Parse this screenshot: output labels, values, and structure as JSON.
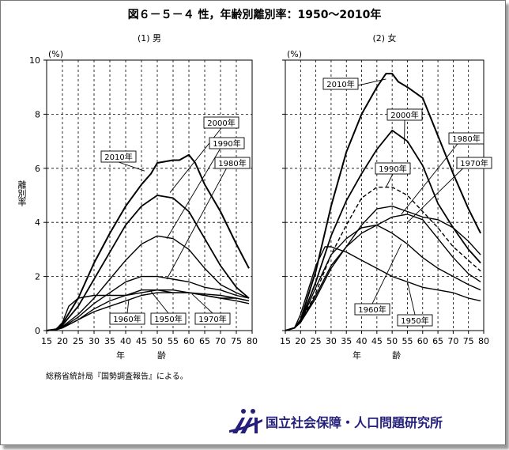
{
  "title": "図６－５－４ 性，年齢別離別率：1950～2010年",
  "ylabel": "離別率",
  "y_unit": "(%)",
  "source": "総務省統計局『国勢調査報告』による。",
  "organization": "国立社会保障・人口問題研究所",
  "colors": {
    "line": "#000000",
    "grid": "#000000",
    "logo": "#241f7a"
  },
  "chart_data": [
    {
      "type": "line",
      "panel_label": "(1) 男",
      "x_label_parts": [
        "年",
        "齢"
      ],
      "xlim": [
        15,
        80
      ],
      "ylim": [
        0,
        10
      ],
      "x_ticks": [
        15,
        20,
        25,
        30,
        35,
        40,
        45,
        50,
        55,
        60,
        65,
        70,
        75,
        80
      ],
      "y_ticks": [
        0,
        2,
        4,
        6,
        8,
        10
      ],
      "grid": true,
      "series": [
        {
          "name": "2010年",
          "x": [
            15,
            18,
            20,
            25,
            30,
            35,
            40,
            45,
            48,
            50,
            55,
            57,
            60,
            62,
            65,
            70,
            75,
            79
          ],
          "y": [
            0,
            0.05,
            0.25,
            1.2,
            2.5,
            3.6,
            4.6,
            5.4,
            5.8,
            6.2,
            6.3,
            6.3,
            6.5,
            6.2,
            5.4,
            4.4,
            3.2,
            2.3
          ]
        },
        {
          "name": "2000年",
          "x": [
            15,
            18,
            20,
            25,
            30,
            35,
            40,
            45,
            50,
            55,
            60,
            65,
            70,
            75,
            79
          ],
          "y": [
            0,
            0.04,
            0.2,
            0.9,
            1.9,
            2.9,
            3.9,
            4.6,
            5.0,
            4.9,
            4.4,
            3.4,
            2.4,
            1.6,
            1.2
          ]
        },
        {
          "name": "1990年",
          "x": [
            15,
            18,
            20,
            25,
            30,
            35,
            40,
            45,
            50,
            55,
            60,
            65,
            70,
            75,
            79
          ],
          "y": [
            0,
            0.04,
            0.15,
            0.6,
            1.2,
            1.9,
            2.6,
            3.2,
            3.5,
            3.4,
            3.0,
            2.3,
            1.7,
            1.4,
            1.2
          ]
        },
        {
          "name": "1980年",
          "x": [
            15,
            18,
            20,
            25,
            30,
            35,
            40,
            45,
            50,
            55,
            60,
            65,
            70,
            75,
            79
          ],
          "y": [
            0,
            0.03,
            0.12,
            0.5,
            1.0,
            1.4,
            1.8,
            2.0,
            2.0,
            1.9,
            1.8,
            1.6,
            1.5,
            1.3,
            1.2
          ]
        },
        {
          "name": "1970年",
          "x": [
            15,
            18,
            20,
            25,
            30,
            35,
            40,
            45,
            50,
            55,
            60,
            65,
            70,
            75,
            79
          ],
          "y": [
            0,
            0.03,
            0.1,
            0.4,
            0.8,
            1.1,
            1.3,
            1.4,
            1.5,
            1.5,
            1.4,
            1.3,
            1.2,
            1.2,
            1.1
          ]
        },
        {
          "name": "1960年",
          "x": [
            15,
            18,
            20,
            25,
            30,
            35,
            40,
            45,
            50,
            55,
            60,
            65,
            70,
            75,
            79
          ],
          "y": [
            0,
            0.03,
            0.1,
            0.4,
            0.7,
            0.9,
            1.1,
            1.3,
            1.4,
            1.4,
            1.4,
            1.35,
            1.3,
            1.2,
            1.1
          ]
        },
        {
          "name": "1950年",
          "x": [
            15,
            18,
            20,
            22,
            25,
            30,
            35,
            40,
            45,
            50,
            55,
            60,
            65,
            70,
            75,
            79
          ],
          "y": [
            0,
            0.05,
            0.3,
            0.9,
            1.2,
            1.3,
            1.3,
            1.3,
            1.5,
            1.5,
            1.4,
            1.4,
            1.3,
            1.2,
            1.1,
            1.0
          ]
        }
      ]
    },
    {
      "type": "line",
      "panel_label": "(2) 女",
      "x_label_parts": [
        "年",
        "齢"
      ],
      "xlim": [
        15,
        80
      ],
      "ylim": [
        0,
        10
      ],
      "x_ticks": [
        15,
        20,
        25,
        30,
        35,
        40,
        45,
        50,
        55,
        60,
        65,
        70,
        75,
        80
      ],
      "y_ticks": [
        0,
        2,
        4,
        6,
        8,
        10
      ],
      "grid": true,
      "series": [
        {
          "name": "2010年",
          "x": [
            15,
            18,
            20,
            25,
            30,
            35,
            40,
            45,
            48,
            50,
            52,
            55,
            60,
            65,
            70,
            75,
            79
          ],
          "y": [
            0,
            0.1,
            0.4,
            2.2,
            4.6,
            6.6,
            8.0,
            9.0,
            9.5,
            9.5,
            9.2,
            9.0,
            8.6,
            7.2,
            5.8,
            4.5,
            3.6
          ]
        },
        {
          "name": "2000年",
          "x": [
            15,
            18,
            20,
            25,
            30,
            35,
            40,
            45,
            50,
            55,
            60,
            65,
            70,
            75,
            79
          ],
          "y": [
            0,
            0.1,
            0.35,
            1.8,
            3.5,
            4.8,
            5.8,
            6.7,
            7.4,
            7.0,
            6.1,
            4.7,
            3.8,
            3.0,
            2.5
          ]
        },
        {
          "name": "1990年",
          "x": [
            15,
            18,
            20,
            25,
            30,
            35,
            40,
            45,
            50,
            55,
            60,
            65,
            70,
            75,
            79
          ],
          "y": [
            0,
            0.1,
            0.3,
            1.4,
            2.8,
            3.9,
            4.9,
            5.3,
            5.3,
            5.0,
            4.4,
            3.8,
            3.1,
            2.6,
            2.2
          ]
        },
        {
          "name": "1980年",
          "x": [
            15,
            18,
            20,
            25,
            30,
            35,
            40,
            45,
            50,
            55,
            60,
            65,
            70,
            75,
            79
          ],
          "y": [
            0,
            0.1,
            0.3,
            1.2,
            2.3,
            3.1,
            3.9,
            4.5,
            4.6,
            4.4,
            4.2,
            4.1,
            3.8,
            3.3,
            2.8
          ]
        },
        {
          "name": "1970年",
          "x": [
            15,
            18,
            20,
            25,
            30,
            35,
            40,
            45,
            50,
            55,
            60,
            65,
            70,
            75,
            79
          ],
          "y": [
            0,
            0.1,
            0.3,
            1.3,
            2.4,
            3.1,
            3.6,
            3.9,
            4.2,
            4.3,
            4.1,
            3.4,
            2.7,
            2.1,
            1.8
          ]
        },
        {
          "name": "1960年",
          "x": [
            15,
            18,
            20,
            25,
            30,
            35,
            40,
            45,
            50,
            55,
            60,
            65,
            70,
            75,
            79
          ],
          "y": [
            0,
            0.1,
            0.3,
            1.6,
            2.8,
            3.4,
            3.8,
            3.9,
            3.6,
            3.2,
            2.7,
            2.3,
            2.0,
            1.7,
            1.5
          ]
        },
        {
          "name": "1950年",
          "x": [
            15,
            18,
            20,
            25,
            28,
            30,
            35,
            40,
            45,
            50,
            55,
            60,
            65,
            70,
            75,
            79
          ],
          "y": [
            0,
            0.1,
            0.6,
            2.4,
            3.1,
            3.1,
            2.9,
            2.6,
            2.3,
            2.0,
            1.8,
            1.6,
            1.5,
            1.4,
            1.2,
            1.1
          ]
        }
      ]
    }
  ]
}
